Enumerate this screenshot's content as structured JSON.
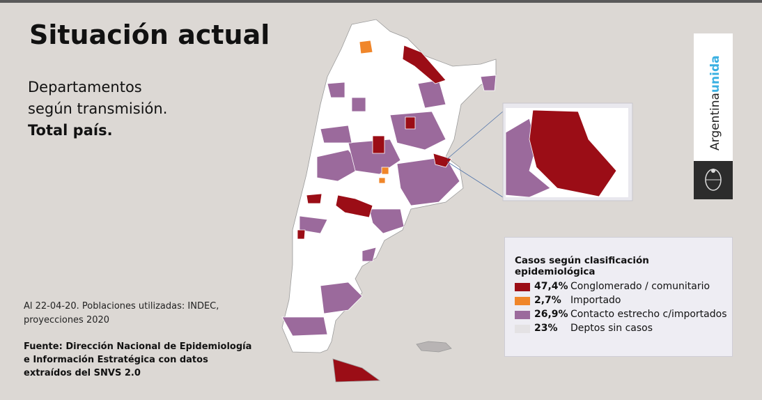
{
  "title": "Situación actual",
  "subtitle": {
    "lines": [
      "Departamentos",
      "según transmisión."
    ],
    "bold": "Total país."
  },
  "note": [
    "Al 22-04-20. Poblaciones utilizadas: INDEC,",
    "proyecciones 2020"
  ],
  "source": [
    "Fuente: Dirección Nacional de Epidemiología",
    "e Información Estratégica con datos",
    "extraídos del SNVS 2.0"
  ],
  "legend": {
    "title": "Casos según clasificación epidemiológica",
    "items": [
      {
        "value": "47,4%",
        "label": "Conglomerado / comunitario",
        "color": "#9b0d16"
      },
      {
        "value": "2,7%",
        "label": "Importado",
        "color": "#f0862a"
      },
      {
        "value": "26,9%",
        "label": "Contacto estrecho c/importados",
        "color": "#9b6a9c"
      },
      {
        "value": "23%",
        "label": "Deptos sin casos",
        "color": "#e4e2e4"
      }
    ]
  },
  "brand": {
    "word1": "Argentina",
    "word2": "unida"
  }
}
